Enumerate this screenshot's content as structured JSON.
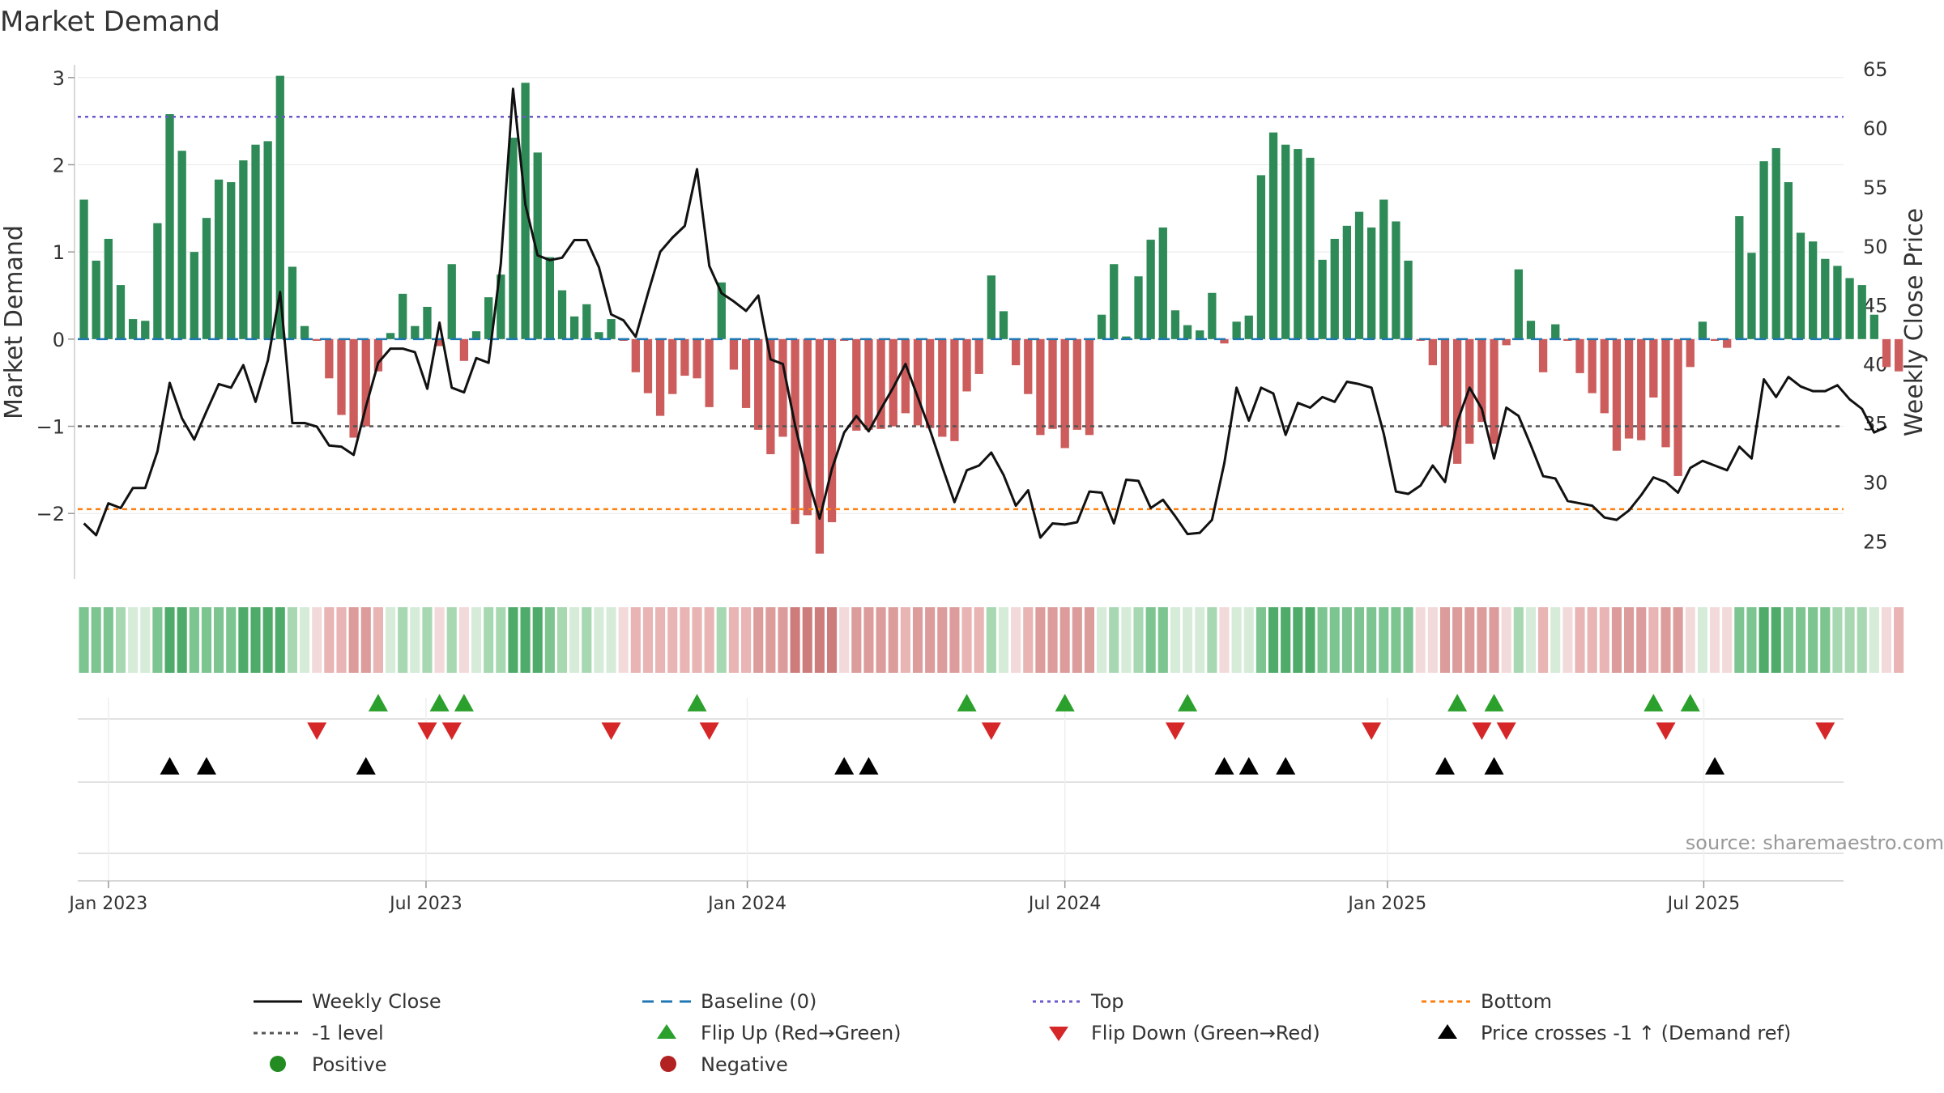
{
  "chart_data": {
    "type": "bar+line",
    "title": "Market Demand",
    "ylabel_left": "Market Demand",
    "ylabel_right": "Weekly Close Price",
    "ylim_left": [
      -2.75,
      3.1
    ],
    "ylim_right": [
      21.8,
      65.0
    ],
    "yticks_left": [
      "3",
      "2",
      "1",
      "0",
      "−1",
      "−2"
    ],
    "yticks_left_values": [
      3,
      2,
      1,
      0,
      -1,
      -2
    ],
    "yticks_right": [
      "65",
      "60",
      "55",
      "50",
      "45",
      "40",
      "35",
      "30",
      "25"
    ],
    "yticks_right_values": [
      65,
      60,
      55,
      50,
      45,
      40,
      35,
      30,
      25
    ],
    "x_start": "2022-12-19",
    "x_range_weeks": [
      -0.5,
      143.5
    ],
    "x_ticks": [
      {
        "label": "Jan 2023",
        "week": 2.0
      },
      {
        "label": "Jul 2023",
        "week": 27.9
      },
      {
        "label": "Jan 2024",
        "week": 54.1
      },
      {
        "label": "Jul 2024",
        "week": 80.0
      },
      {
        "label": "Jan 2025",
        "week": 106.3
      },
      {
        "label": "Jul 2025",
        "week": 132.1
      }
    ],
    "reference_lines": {
      "top": 2.55,
      "bottom": -1.95,
      "minus_one": -1,
      "baseline": 0
    },
    "demand": [
      1.6,
      0.9,
      1.15,
      0.62,
      0.23,
      0.21,
      1.33,
      2.58,
      2.16,
      1.0,
      1.39,
      1.83,
      1.8,
      2.05,
      2.23,
      2.27,
      3.02,
      0.83,
      0.15,
      -0.02,
      -0.45,
      -0.87,
      -1.13,
      -1.0,
      -0.37,
      0.07,
      0.52,
      0.15,
      0.37,
      -0.08,
      0.86,
      -0.25,
      0.09,
      0.48,
      0.74,
      2.31,
      2.94,
      2.14,
      0.94,
      0.56,
      0.26,
      0.4,
      0.08,
      0.23,
      -0.02,
      -0.38,
      -0.62,
      -0.88,
      -0.63,
      -0.42,
      -0.45,
      -0.78,
      0.65,
      -0.35,
      -0.79,
      -1.04,
      -1.32,
      -1.12,
      -2.12,
      -2.02,
      -2.46,
      -2.1,
      -0.02,
      -1.05,
      -1.04,
      -1.03,
      -1.0,
      -0.85,
      -0.99,
      -1.02,
      -1.12,
      -1.17,
      -0.6,
      -0.4,
      0.73,
      0.32,
      -0.3,
      -0.63,
      -1.1,
      -1.03,
      -1.25,
      -1.04,
      -1.1,
      0.28,
      0.86,
      0.03,
      0.72,
      1.14,
      1.28,
      0.33,
      0.16,
      0.1,
      0.53,
      -0.05,
      0.2,
      0.27,
      1.88,
      2.37,
      2.23,
      2.18,
      2.08,
      0.91,
      1.15,
      1.3,
      1.46,
      1.28,
      1.6,
      1.35,
      0.9,
      -0.02,
      -0.3,
      -1.0,
      -1.43,
      -1.2,
      -0.95,
      -1.2,
      -0.07,
      0.8,
      0.21,
      -0.38,
      0.17,
      -0.02,
      -0.39,
      -0.62,
      -0.85,
      -1.28,
      -1.14,
      -1.16,
      -0.67,
      -1.24,
      -1.57,
      -0.32,
      0.2,
      -0.02,
      -0.1,
      1.41,
      0.99,
      2.04,
      2.19,
      1.8,
      1.22,
      1.12,
      0.92,
      0.84,
      0.7,
      0.62,
      0.28,
      -0.32,
      -0.37
    ],
    "weekly_close": [
      26.5,
      25.5,
      28.2,
      27.8,
      29.5,
      29.5,
      32.6,
      38.4,
      35.4,
      33.6,
      36.0,
      38.3,
      38.0,
      39.9,
      36.8,
      40.3,
      46.1,
      35.0,
      35.0,
      34.7,
      33.1,
      33.0,
      32.3,
      36.4,
      40.1,
      41.3,
      41.3,
      41.0,
      37.9,
      43.5,
      38.0,
      37.6,
      40.5,
      40.1,
      48.5,
      63.3,
      53.5,
      49.2,
      48.8,
      49.0,
      50.5,
      50.5,
      48.2,
      44.2,
      43.7,
      42.3,
      46.0,
      49.5,
      50.7,
      51.7,
      56.5,
      48.3,
      46.0,
      45.3,
      44.5,
      45.8,
      40.4,
      40.0,
      34.8,
      30.4,
      26.9,
      31.1,
      34.2,
      35.6,
      34.3,
      36.2,
      38.0,
      40.0,
      37.2,
      34.4,
      31.3,
      28.3,
      31.0,
      31.4,
      32.5,
      30.6,
      28.0,
      29.3,
      25.3,
      26.5,
      26.4,
      26.6,
      29.2,
      29.1,
      26.5,
      30.2,
      30.1,
      27.8,
      28.5,
      27.1,
      25.6,
      25.7,
      26.8,
      31.6,
      38.0,
      35.2,
      38.0,
      37.5,
      34.0,
      36.7,
      36.3,
      37.2,
      36.8,
      38.5,
      38.3,
      38.0,
      34.1,
      29.2,
      29.0,
      29.7,
      31.4,
      30.0,
      35.1,
      38.0,
      36.2,
      32.0,
      36.3,
      35.6,
      33.1,
      30.5,
      30.3,
      28.4,
      28.2,
      28.0,
      27.0,
      26.8,
      27.6,
      28.9,
      30.4,
      30.0,
      29.1,
      31.2,
      31.8,
      31.4,
      31.0,
      33.0,
      32.0,
      38.7,
      37.2,
      38.9,
      38.1,
      37.7,
      37.7,
      38.2,
      37.0,
      36.2,
      34.2,
      34.7
    ]
  },
  "strips": {
    "flip_up_weeks": [
      24,
      29,
      31,
      50,
      72,
      80,
      90,
      112,
      115,
      128,
      131
    ],
    "flip_down_weeks": [
      19,
      28,
      30,
      43,
      51,
      74,
      89,
      105,
      114,
      116,
      129,
      142
    ],
    "price_cross_weeks": [
      7,
      10,
      23,
      62,
      64,
      93,
      95,
      98,
      111,
      115,
      133
    ]
  },
  "colors": {
    "positive_bar": "#2e8b57",
    "negative_bar": "#cd5c5c",
    "price_line": "#111111",
    "baseline": "#1f77b4",
    "top_line": "#6a5acd",
    "bottom_line": "#ff7f0e",
    "minus_one_line": "#555555",
    "flip_up": "#2ca02c",
    "flip_down": "#d62728",
    "price_cross": "#000000",
    "positive_dot": "#228b22",
    "negative_dot": "#b22222"
  },
  "legend": {
    "weekly_close": "Weekly Close",
    "baseline": "Baseline (0)",
    "top": "Top",
    "bottom": "Bottom",
    "minus_one": "-1 level",
    "flip_up": "Flip Up (Red→Green)",
    "flip_down": "Flip Down (Green→Red)",
    "price_cross": "Price crosses -1 ↑ (Demand ref)",
    "positive": "Positive",
    "negative": "Negative"
  },
  "source": "source: sharemaestro.com"
}
